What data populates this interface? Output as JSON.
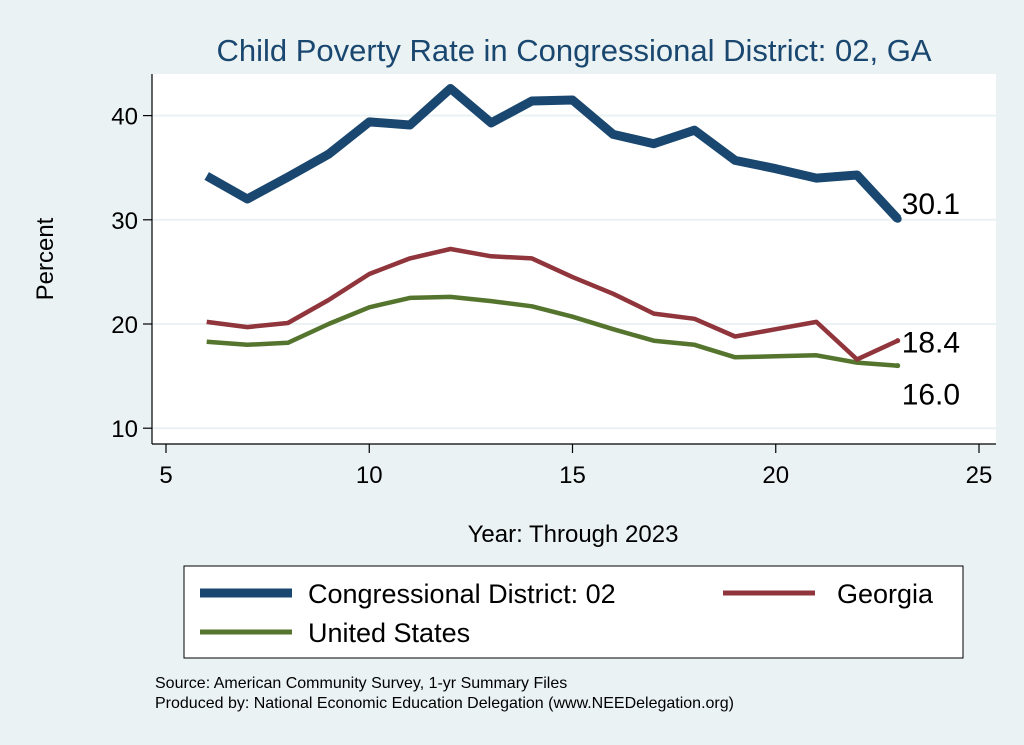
{
  "chart_data": {
    "type": "line",
    "title": "Child Poverty Rate in Congressional District:  02, GA",
    "xlabel": "Year: Through 2023",
    "ylabel": "Percent",
    "xlim": [
      5,
      25
    ],
    "ylim": [
      10,
      45
    ],
    "xticks": [
      "5",
      "10",
      "15",
      "20",
      "25"
    ],
    "yticks": [
      "10",
      "20",
      "30",
      "40"
    ],
    "grid": "horizontal",
    "legend_position": "bottom",
    "series": [
      {
        "name": "Congressional District:  02",
        "color": "#1a476f",
        "x": [
          6,
          7,
          8,
          9,
          10,
          11,
          12,
          13,
          14,
          15,
          16,
          17,
          18,
          19,
          20,
          21,
          22,
          23
        ],
        "y": [
          34.2,
          32.0,
          34.1,
          36.3,
          39.4,
          39.1,
          42.6,
          39.3,
          41.4,
          41.5,
          38.2,
          37.3,
          38.6,
          35.7,
          34.9,
          34.0,
          34.3,
          30.1
        ],
        "end_label": "30.1"
      },
      {
        "name": "Georgia",
        "color": "#90353b",
        "x": [
          6,
          7,
          8,
          9,
          10,
          11,
          12,
          13,
          14,
          15,
          16,
          17,
          18,
          19,
          20,
          21,
          22,
          23
        ],
        "y": [
          20.2,
          19.7,
          20.1,
          22.3,
          24.8,
          26.3,
          27.2,
          26.5,
          26.3,
          24.5,
          22.9,
          21.0,
          20.5,
          18.8,
          19.5,
          20.2,
          16.6,
          18.4
        ],
        "end_label": "18.4"
      },
      {
        "name": "United States",
        "color": "#55752f",
        "x": [
          6,
          7,
          8,
          9,
          10,
          11,
          12,
          13,
          14,
          15,
          16,
          17,
          18,
          19,
          20,
          21,
          22,
          23
        ],
        "y": [
          18.3,
          18.0,
          18.2,
          20.0,
          21.6,
          22.5,
          22.6,
          22.2,
          21.7,
          20.7,
          19.5,
          18.4,
          18.0,
          16.8,
          16.9,
          17.0,
          16.3,
          16.0
        ],
        "end_label": "16.0"
      }
    ],
    "source_lines": [
      "Source: American Community Survey, 1-yr Summary Files",
      "Produced by: National Economic Education Delegation (www.NEEDelegation.org)"
    ]
  }
}
